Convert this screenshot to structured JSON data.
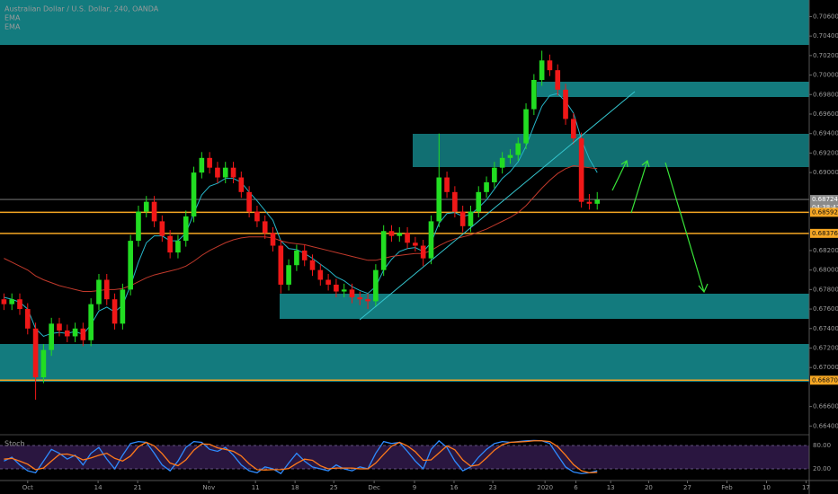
{
  "chart_data": [
    {
      "type": "candlestick",
      "title": "Australian Dollar / U.S. Dollar, 240, OANDA",
      "indicators": [
        "EMA",
        "EMA"
      ],
      "up_color": "#22dd22",
      "down_color": "#f01818",
      "x": [
        0,
        1,
        2,
        3,
        4,
        5,
        6,
        7,
        8,
        9,
        10,
        11,
        12,
        13,
        14,
        15,
        16,
        17,
        18,
        19,
        20,
        21,
        22,
        23,
        24,
        25,
        26,
        27,
        28,
        29,
        30,
        31,
        32,
        33,
        34,
        35,
        36,
        37,
        38,
        39,
        40,
        41,
        42,
        43,
        44,
        45,
        46,
        47,
        48,
        49,
        50,
        51,
        52,
        53,
        54,
        55,
        56,
        57,
        58,
        59,
        60,
        61,
        62,
        63,
        64,
        65,
        66,
        67,
        68,
        69,
        70,
        71,
        72,
        73,
        74,
        75
      ],
      "open": [
        0.677,
        0.6765,
        0.677,
        0.676,
        0.674,
        0.669,
        0.6718,
        0.6745,
        0.6738,
        0.6732,
        0.674,
        0.6728,
        0.6765,
        0.679,
        0.677,
        0.6745,
        0.678,
        0.683,
        0.686,
        0.687,
        0.685,
        0.6835,
        0.6818,
        0.683,
        0.6855,
        0.69,
        0.6915,
        0.6905,
        0.6895,
        0.6905,
        0.6895,
        0.688,
        0.686,
        0.685,
        0.6838,
        0.6825,
        0.6785,
        0.6805,
        0.682,
        0.681,
        0.68,
        0.679,
        0.6785,
        0.6778,
        0.678,
        0.6772,
        0.677,
        0.6768,
        0.68,
        0.684,
        0.6835,
        0.6838,
        0.6828,
        0.6825,
        0.6812,
        0.685,
        0.6895,
        0.688,
        0.686,
        0.6845,
        0.686,
        0.688,
        0.689,
        0.6905,
        0.6915,
        0.6918,
        0.693,
        0.6965,
        0.6995,
        0.7015,
        0.7005,
        0.6985,
        0.6955,
        0.6935,
        0.687,
        0.6868
      ],
      "high": [
        0.6776,
        0.6776,
        0.6776,
        0.6766,
        0.6746,
        0.6724,
        0.6751,
        0.6751,
        0.6744,
        0.6746,
        0.6746,
        0.6771,
        0.6796,
        0.6796,
        0.6776,
        0.6786,
        0.6836,
        0.6866,
        0.6876,
        0.6876,
        0.6856,
        0.6841,
        0.6836,
        0.6861,
        0.6906,
        0.6921,
        0.6921,
        0.6911,
        0.6911,
        0.6911,
        0.6901,
        0.6886,
        0.6866,
        0.6856,
        0.6844,
        0.6831,
        0.6811,
        0.6826,
        0.6826,
        0.6816,
        0.6806,
        0.6796,
        0.6791,
        0.6786,
        0.6786,
        0.6778,
        0.6776,
        0.6806,
        0.6846,
        0.6846,
        0.6844,
        0.6844,
        0.6834,
        0.6831,
        0.6856,
        0.694,
        0.6901,
        0.6886,
        0.6866,
        0.6866,
        0.6886,
        0.6896,
        0.6911,
        0.6921,
        0.6924,
        0.6936,
        0.6971,
        0.7001,
        0.7025,
        0.7021,
        0.7011,
        0.6991,
        0.6961,
        0.6941,
        0.6878,
        0.688
      ],
      "low": [
        0.6759,
        0.6759,
        0.6754,
        0.6734,
        0.6667,
        0.6684,
        0.6712,
        0.6732,
        0.6726,
        0.6726,
        0.6722,
        0.6722,
        0.6759,
        0.6764,
        0.6739,
        0.6739,
        0.6774,
        0.6824,
        0.6854,
        0.6844,
        0.6829,
        0.6812,
        0.6812,
        0.6824,
        0.6849,
        0.6894,
        0.6899,
        0.6889,
        0.6889,
        0.6889,
        0.6874,
        0.6854,
        0.6844,
        0.6832,
        0.6819,
        0.6776,
        0.6779,
        0.6799,
        0.6804,
        0.6794,
        0.6784,
        0.6779,
        0.6772,
        0.6772,
        0.6766,
        0.6764,
        0.676,
        0.6762,
        0.6794,
        0.6829,
        0.6829,
        0.6822,
        0.6819,
        0.6804,
        0.6806,
        0.6844,
        0.6874,
        0.6854,
        0.6839,
        0.6839,
        0.6854,
        0.6874,
        0.6884,
        0.6899,
        0.6909,
        0.6912,
        0.6924,
        0.6959,
        0.6989,
        0.6999,
        0.6979,
        0.6949,
        0.6929,
        0.6864,
        0.6862,
        0.6862
      ],
      "close": [
        0.6765,
        0.677,
        0.676,
        0.674,
        0.669,
        0.6718,
        0.6745,
        0.6738,
        0.6732,
        0.674,
        0.6728,
        0.6765,
        0.679,
        0.677,
        0.6745,
        0.678,
        0.683,
        0.686,
        0.687,
        0.685,
        0.6835,
        0.6818,
        0.683,
        0.6855,
        0.69,
        0.6915,
        0.6905,
        0.6895,
        0.6905,
        0.6895,
        0.688,
        0.686,
        0.685,
        0.6838,
        0.6825,
        0.6785,
        0.6805,
        0.682,
        0.681,
        0.68,
        0.679,
        0.6785,
        0.6778,
        0.678,
        0.6772,
        0.677,
        0.6768,
        0.68,
        0.684,
        0.6835,
        0.6838,
        0.6828,
        0.6825,
        0.6812,
        0.685,
        0.6895,
        0.688,
        0.686,
        0.6845,
        0.686,
        0.688,
        0.689,
        0.6905,
        0.6915,
        0.6918,
        0.693,
        0.6965,
        0.6995,
        0.7015,
        0.7005,
        0.6985,
        0.6955,
        0.6935,
        0.687,
        0.6868,
        0.6872
      ],
      "series": [
        {
          "color": "#26b5c8",
          "values": [
            0.6772,
            0.677,
            0.6767,
            0.676,
            0.674,
            0.6732,
            0.6735,
            0.6736,
            0.6735,
            0.6737,
            0.6734,
            0.6744,
            0.6758,
            0.6762,
            0.6757,
            0.6764,
            0.6784,
            0.6808,
            0.6828,
            0.6835,
            0.6835,
            0.683,
            0.683,
            0.6838,
            0.6858,
            0.6877,
            0.6886,
            0.6889,
            0.6894,
            0.6894,
            0.689,
            0.688,
            0.6871,
            0.6861,
            0.6851,
            0.683,
            0.6822,
            0.6821,
            0.6817,
            0.6812,
            0.6806,
            0.68,
            0.6793,
            0.6789,
            0.6783,
            0.6779,
            0.6776,
            0.6783,
            0.68,
            0.6811,
            0.6819,
            0.6822,
            0.6823,
            0.6819,
            0.6828,
            0.6848,
            0.6858,
            0.6859,
            0.6855,
            0.6857,
            0.6864,
            0.6872,
            0.6883,
            0.6894,
            0.6901,
            0.6911,
            0.6927,
            0.6948,
            0.6968,
            0.6979,
            0.6981,
            0.6973,
            0.6961,
            0.6934,
            0.6914,
            0.69
          ]
        },
        {
          "color": "#c0392b",
          "values": [
            0.6812,
            0.6808,
            0.6804,
            0.68,
            0.6794,
            0.679,
            0.6787,
            0.6784,
            0.6782,
            0.678,
            0.6778,
            0.6778,
            0.6779,
            0.678,
            0.678,
            0.6781,
            0.6784,
            0.6788,
            0.6792,
            0.6795,
            0.6797,
            0.6799,
            0.6801,
            0.6804,
            0.6809,
            0.6815,
            0.682,
            0.6824,
            0.6828,
            0.6831,
            0.6833,
            0.6834,
            0.6834,
            0.6834,
            0.6833,
            0.683,
            0.6828,
            0.6827,
            0.6826,
            0.6824,
            0.6822,
            0.682,
            0.6818,
            0.6816,
            0.6814,
            0.6812,
            0.681,
            0.681,
            0.6812,
            0.6814,
            0.6815,
            0.6816,
            0.6817,
            0.6817,
            0.682,
            0.6825,
            0.6829,
            0.6832,
            0.6834,
            0.6836,
            0.6839,
            0.6842,
            0.6846,
            0.685,
            0.6854,
            0.6859,
            0.6866,
            0.6875,
            0.6884,
            0.6892,
            0.6899,
            0.6904,
            0.6907,
            0.6906,
            0.6905,
            0.6904
          ]
        }
      ],
      "xlim": [
        -0.5,
        101.8
      ],
      "ylim": [
        0.6632,
        0.7077
      ],
      "xticks": [
        {
          "value": 3.0,
          "label": "Oct"
        },
        {
          "value": 11.9,
          "label": "14"
        },
        {
          "value": 16.9,
          "label": "21"
        },
        {
          "value": 25.9,
          "label": "Nov"
        },
        {
          "value": 31.8,
          "label": "11"
        },
        {
          "value": 36.8,
          "label": "18"
        },
        {
          "value": 41.7,
          "label": "25"
        },
        {
          "value": 46.8,
          "label": "Dec"
        },
        {
          "value": 51.9,
          "label": "9"
        },
        {
          "value": 56.9,
          "label": "16"
        },
        {
          "value": 61.8,
          "label": "23"
        },
        {
          "value": 68.4,
          "label": "2020"
        },
        {
          "value": 72.3,
          "label": "6"
        },
        {
          "value": 76.7,
          "label": "13"
        },
        {
          "value": 81.5,
          "label": "20"
        },
        {
          "value": 86.4,
          "label": "27"
        },
        {
          "value": 91.4,
          "label": "Feb"
        },
        {
          "value": 96.4,
          "label": "10"
        },
        {
          "value": 101.4,
          "label": "17"
        }
      ],
      "yticks": [
        {
          "value": 0.664,
          "label": "0.66400"
        },
        {
          "value": 0.666,
          "label": "0.66600"
        },
        {
          "value": 0.67,
          "label": "0.67000"
        },
        {
          "value": 0.672,
          "label": "0.67200"
        },
        {
          "value": 0.674,
          "label": "0.67400"
        },
        {
          "value": 0.676,
          "label": "0.67600"
        },
        {
          "value": 0.678,
          "label": "0.67800"
        },
        {
          "value": 0.68,
          "label": "0.68000"
        },
        {
          "value": 0.682,
          "label": "0.68200"
        },
        {
          "value": 0.69,
          "label": "0.69000"
        },
        {
          "value": 0.692,
          "label": "0.69200"
        },
        {
          "value": 0.694,
          "label": "0.69400"
        },
        {
          "value": 0.696,
          "label": "0.69600"
        },
        {
          "value": 0.698,
          "label": "0.69800"
        },
        {
          "value": 0.7,
          "label": "0.70000"
        },
        {
          "value": 0.702,
          "label": "0.70200"
        },
        {
          "value": 0.704,
          "label": "0.70400"
        },
        {
          "value": 0.706,
          "label": "0.70600"
        }
      ],
      "levels": [
        {
          "price": 0.68724,
          "color": "#8a8a8a",
          "countdown": "04:38:47"
        },
        {
          "price": 0.68592,
          "color": "#f5a623"
        },
        {
          "price": 0.68376,
          "color": "#f5a623"
        },
        {
          "price": {
            "value": 0.6687,
            "label": "0.66870"
          },
          "color": "#f5a623"
        }
      ]
    },
    {
      "type": "line",
      "title": "Stoch",
      "series": [
        {
          "color": "#2e8bff",
          "values": [
            40,
            50,
            30,
            15,
            10,
            40,
            70,
            60,
            45,
            55,
            30,
            60,
            75,
            45,
            20,
            55,
            85,
            90,
            88,
            60,
            30,
            15,
            40,
            75,
            90,
            88,
            70,
            65,
            75,
            55,
            30,
            15,
            10,
            25,
            20,
            8,
            35,
            60,
            40,
            25,
            20,
            15,
            30,
            20,
            15,
            25,
            20,
            60,
            90,
            85,
            88,
            65,
            40,
            20,
            70,
            92,
            75,
            40,
            15,
            25,
            50,
            70,
            85,
            90,
            88,
            90,
            92,
            93,
            92,
            85,
            55,
            25,
            12,
            8,
            10,
            15
          ]
        },
        {
          "color": "#ff7a1a",
          "values": [
            45,
            47,
            40,
            32,
            18,
            22,
            40,
            57,
            58,
            53,
            43,
            48,
            55,
            60,
            47,
            40,
            53,
            77,
            88,
            79,
            59,
            35,
            28,
            43,
            68,
            84,
            83,
            74,
            70,
            65,
            53,
            33,
            18,
            17,
            18,
            18,
            21,
            34,
            45,
            42,
            28,
            20,
            22,
            22,
            22,
            20,
            20,
            35,
            57,
            78,
            88,
            79,
            64,
            42,
            43,
            61,
            79,
            69,
            43,
            27,
            30,
            48,
            68,
            82,
            88,
            89,
            90,
            92,
            92,
            90,
            77,
            55,
            31,
            15,
            10,
            11
          ]
        }
      ],
      "ylim": [
        0,
        100
      ],
      "yticks": [
        {
          "value": 80,
          "label": "80.00"
        },
        {
          "value": 20,
          "label": "20.00"
        }
      ]
    }
  ]
}
